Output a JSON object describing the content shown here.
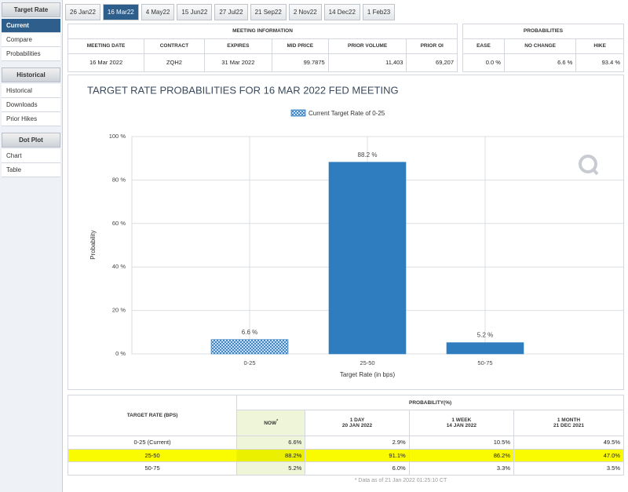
{
  "sidebar": {
    "sections": [
      {
        "title": "Target Rate",
        "items": [
          "Current",
          "Compare",
          "Probabilities"
        ]
      },
      {
        "title": "Historical",
        "items": [
          "Historical",
          "Downloads",
          "Prior Hikes"
        ]
      },
      {
        "title": "Dot Plot",
        "items": [
          "Chart",
          "Table"
        ]
      }
    ]
  },
  "tabs": [
    "26 Jan22",
    "16 Mar22",
    "4 May22",
    "15 Jun22",
    "27 Jul22",
    "21 Sep22",
    "2 Nov22",
    "14 Dec22",
    "1 Feb23"
  ],
  "meeting_info": {
    "title": "MEETING INFORMATION",
    "columns": [
      "MEETING DATE",
      "CONTRACT",
      "EXPIRES",
      "MID PRICE",
      "PRIOR VOLUME",
      "PRIOR OI"
    ],
    "values": [
      "16 Mar 2022",
      "ZQH2",
      "31 Mar 2022",
      "99.7875",
      "11,403",
      "69,207"
    ]
  },
  "probabilities": {
    "title": "PROBABILITIES",
    "columns": [
      "EASE",
      "NO CHANGE",
      "HIKE"
    ],
    "values": [
      "0.0 %",
      "6.6 %",
      "93.4 %"
    ]
  },
  "chart_data": {
    "type": "bar",
    "title": "TARGET RATE PROBABILITIES FOR 16 MAR 2022 FED MEETING",
    "legend": "Current Target Rate of 0-25",
    "x_label": "Target Rate (in bps)",
    "y_label": "Probability",
    "categories": [
      "0-25",
      "25-50",
      "50-75"
    ],
    "values": [
      6.6,
      88.2,
      5.2
    ],
    "value_labels": [
      "6.6 %",
      "88.2 %",
      "5.2 %"
    ],
    "color": "#2f7dbf",
    "ylim": [
      0,
      100
    ],
    "yticks": [
      {
        "value": 0,
        "label": "0 %"
      },
      {
        "value": 20,
        "label": "20 %"
      },
      {
        "value": 40,
        "label": "40 %"
      },
      {
        "value": 60,
        "label": "60 %"
      },
      {
        "value": 80,
        "label": "80 %"
      },
      {
        "value": 100,
        "label": "100 %"
      }
    ],
    "grid": true
  },
  "probability_table": {
    "row_header": "TARGET RATE (BPS)",
    "group_header": "PROBABILITY(%)",
    "columns": [
      {
        "period": "NOW",
        "note": "*"
      },
      {
        "period": "1 DAY",
        "date": "20 JAN 2022"
      },
      {
        "period": "1 WEEK",
        "date": "14 JAN 2022"
      },
      {
        "period": "1 MONTH",
        "date": "21 DEC 2021"
      }
    ],
    "rows": [
      {
        "label": "0-25 (Current)",
        "values": [
          "6.6%",
          "2.9%",
          "10.5%",
          "49.5%"
        ]
      },
      {
        "label": "25-50",
        "values": [
          "88.2%",
          "91.1%",
          "86.2%",
          "47.0%"
        ]
      },
      {
        "label": "50-75",
        "values": [
          "5.2%",
          "6.0%",
          "3.3%",
          "3.5%"
        ]
      }
    ],
    "footnote": "* Data as of 21 Jan 2022 01:25:10 CT"
  }
}
